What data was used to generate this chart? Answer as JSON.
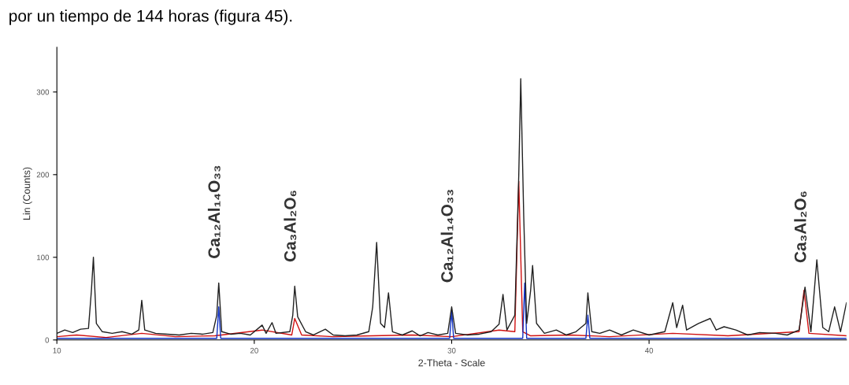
{
  "chart_data": {
    "type": "line",
    "title": "por un tiempo de 144 horas (figura 45).",
    "xlabel": "2-Theta - Scale",
    "ylabel": "Lin (Counts)",
    "xlim": [
      10,
      50
    ],
    "xticks": [
      10,
      20,
      30,
      40
    ],
    "ylim": [
      0,
      354
    ],
    "yticks": [
      0,
      100,
      200,
      300
    ],
    "grid": false,
    "series": [
      {
        "color": "#d01010",
        "x": [
          10,
          11.0,
          12.5,
          14.3,
          16.0,
          18.0,
          20.4,
          21.9,
          22.05,
          22.4,
          24.0,
          26.0,
          28.0,
          30.0,
          32.4,
          33.2,
          33.4,
          33.6,
          34.0,
          36.0,
          38.0,
          41.2,
          44.0,
          47.6,
          47.85,
          48.1,
          50.0
        ],
        "values": [
          4,
          6,
          3,
          8,
          4,
          5,
          12,
          6,
          26,
          6,
          4,
          5,
          6,
          4,
          12,
          10,
          192,
          10,
          5,
          6,
          4,
          8,
          5,
          10,
          60,
          8,
          5
        ]
      },
      {
        "color": "#1030c0",
        "x": [
          10,
          18.1,
          18.2,
          18.3,
          29.9,
          30.0,
          30.1,
          33.6,
          33.7,
          33.8,
          36.8,
          36.9,
          37.0,
          50.0
        ],
        "values": [
          2,
          2,
          40,
          2,
          2,
          35,
          2,
          2,
          69,
          2,
          2,
          30,
          2,
          2
        ]
      },
      {
        "color": "#202020",
        "x": [
          10.0,
          10.4,
          10.8,
          11.2,
          11.6,
          11.75,
          11.85,
          12.0,
          12.3,
          12.8,
          13.3,
          13.8,
          14.15,
          14.3,
          14.45,
          15.0,
          15.6,
          16.2,
          16.8,
          17.4,
          17.9,
          18.1,
          18.2,
          18.35,
          18.8,
          19.3,
          19.8,
          20.4,
          20.6,
          20.9,
          21.1,
          21.8,
          21.95,
          22.05,
          22.2,
          22.6,
          23.0,
          23.6,
          24.0,
          24.6,
          25.2,
          25.8,
          26.0,
          26.2,
          26.4,
          26.6,
          26.8,
          27.0,
          27.5,
          28.0,
          28.4,
          28.8,
          29.3,
          29.8,
          30.0,
          30.2,
          30.8,
          31.4,
          32.0,
          32.4,
          32.6,
          32.8,
          33.2,
          33.4,
          33.5,
          33.65,
          33.8,
          34.0,
          34.1,
          34.3,
          34.7,
          35.3,
          35.8,
          36.3,
          36.8,
          36.9,
          37.1,
          37.5,
          38.0,
          38.6,
          39.2,
          40.0,
          40.8,
          41.2,
          41.4,
          41.7,
          41.9,
          42.5,
          43.1,
          43.4,
          43.8,
          44.4,
          45.0,
          45.6,
          46.4,
          47.0,
          47.6,
          47.9,
          48.2,
          48.5,
          48.8,
          49.1,
          49.4,
          49.7,
          50.0
        ],
        "values": [
          8,
          12,
          9,
          13,
          14,
          60,
          100,
          20,
          10,
          8,
          10,
          7,
          12,
          48,
          12,
          8,
          7,
          6,
          8,
          7,
          9,
          30,
          69,
          10,
          7,
          8,
          6,
          18,
          8,
          21,
          8,
          10,
          30,
          65,
          28,
          10,
          6,
          13,
          6,
          5,
          6,
          10,
          40,
          118,
          20,
          15,
          57,
          10,
          6,
          11,
          5,
          9,
          6,
          8,
          40,
          8,
          6,
          7,
          10,
          19,
          55,
          12,
          30,
          200,
          316,
          150,
          20,
          60,
          90,
          20,
          8,
          12,
          6,
          10,
          20,
          57,
          10,
          8,
          12,
          6,
          12,
          6,
          10,
          45,
          15,
          42,
          12,
          20,
          26,
          12,
          16,
          12,
          6,
          9,
          8,
          6,
          12,
          64,
          10,
          97,
          15,
          10,
          40,
          10,
          45
        ]
      }
    ],
    "annotations": [
      {
        "text": "Ca₁₂Al₁₄O₃₃",
        "x": 18.2,
        "y": 69
      },
      {
        "text": "Ca₃Al₂O₆",
        "x": 22.05,
        "y": 65
      },
      {
        "text": "Ca₁₂Al₁₄O₃₃",
        "x": 30.0,
        "y": 40
      },
      {
        "text": "Ca₃Al₂O₆",
        "x": 47.9,
        "y": 64
      }
    ]
  }
}
